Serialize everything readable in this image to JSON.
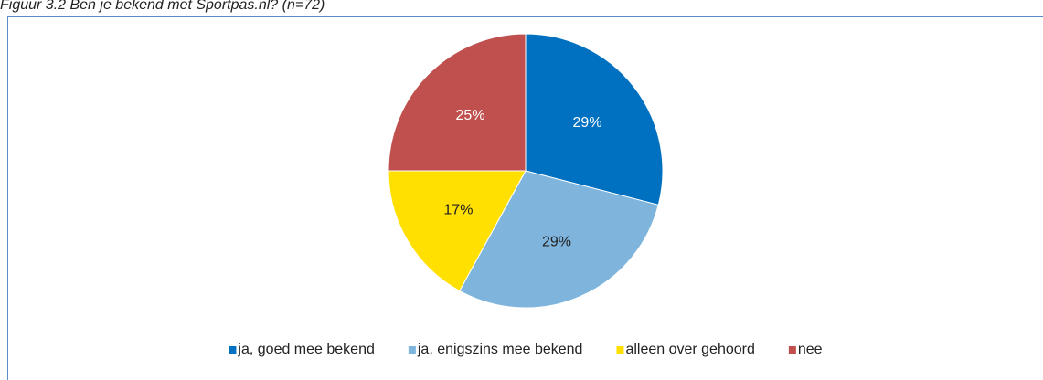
{
  "chart_data": {
    "type": "pie",
    "title": "Figuur 3.2 Ben je bekend met Sportpas.nl? (n=72)",
    "categories": [
      "ja, goed mee bekend",
      "ja, enigszins mee bekend",
      "alleen over gehoord",
      "nee"
    ],
    "values": [
      29,
      29,
      17,
      25
    ],
    "value_labels": [
      "29%",
      "29%",
      "17%",
      "25%"
    ],
    "colors": [
      "#0070c0",
      "#7fb5dc",
      "#ffe000",
      "#c0504d"
    ],
    "legend": "bottom"
  }
}
